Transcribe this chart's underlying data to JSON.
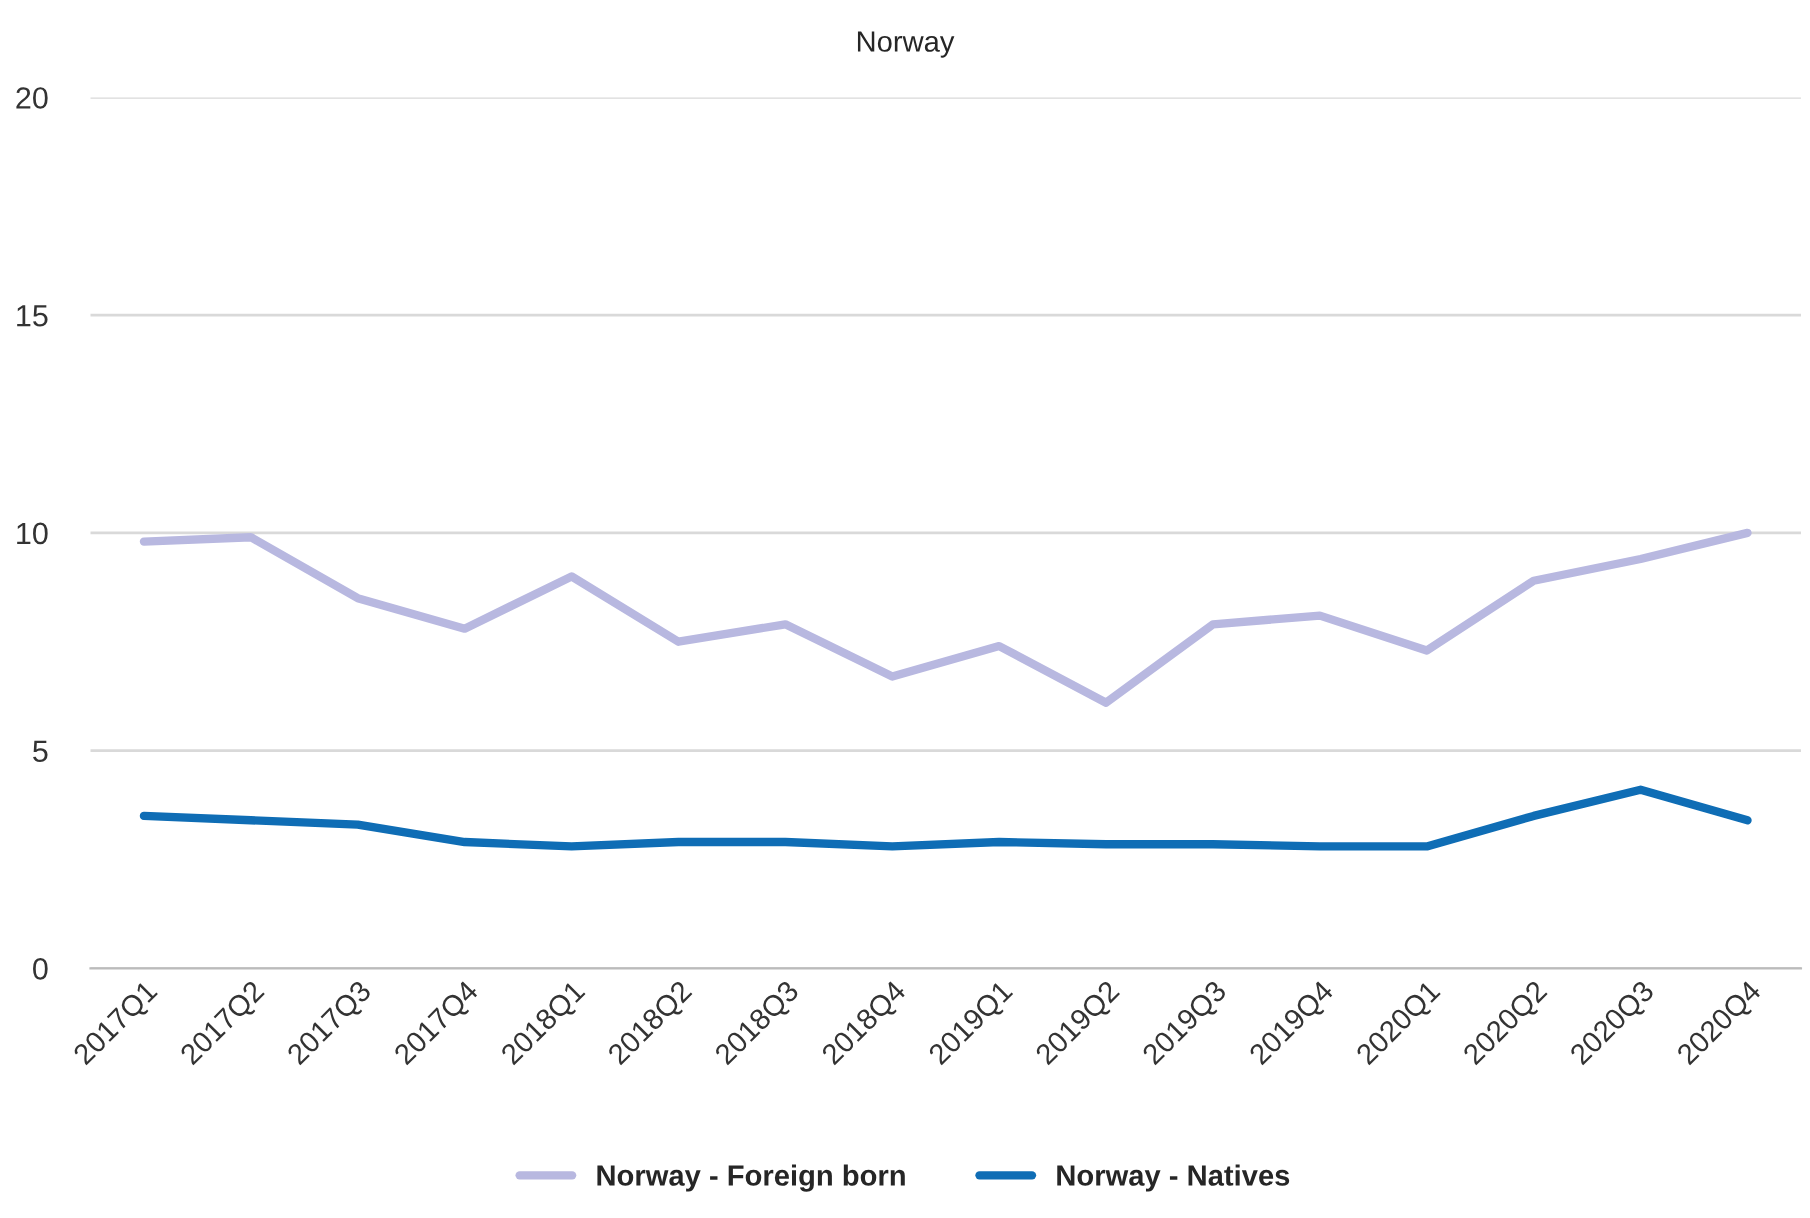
{
  "chart_data": {
    "type": "line",
    "title": "Norway",
    "categories": [
      "2017Q1",
      "2017Q2",
      "2017Q3",
      "2017Q4",
      "2018Q1",
      "2018Q2",
      "2018Q3",
      "2018Q4",
      "2019Q1",
      "2019Q2",
      "2019Q3",
      "2019Q4",
      "2020Q1",
      "2020Q2",
      "2020Q3",
      "2020Q4"
    ],
    "series": [
      {
        "name": "Norway - Foreign born",
        "color": "#b8b8e0",
        "values": [
          9.8,
          9.9,
          8.5,
          7.8,
          9.0,
          7.5,
          7.9,
          6.7,
          7.4,
          6.1,
          7.9,
          8.1,
          7.3,
          8.9,
          9.4,
          10.0
        ]
      },
      {
        "name": "Norway - Natives",
        "color": "#0f6db5",
        "values": [
          3.5,
          3.4,
          3.3,
          2.9,
          2.8,
          2.9,
          2.9,
          2.8,
          2.9,
          2.85,
          2.85,
          2.8,
          2.8,
          3.5,
          4.1,
          3.4
        ]
      }
    ],
    "ylim": [
      0,
      20
    ],
    "yticks": [
      0,
      5,
      10,
      15,
      20
    ],
    "grid": "y",
    "legend": "bottom",
    "marker": "none",
    "line_style": "solid"
  }
}
